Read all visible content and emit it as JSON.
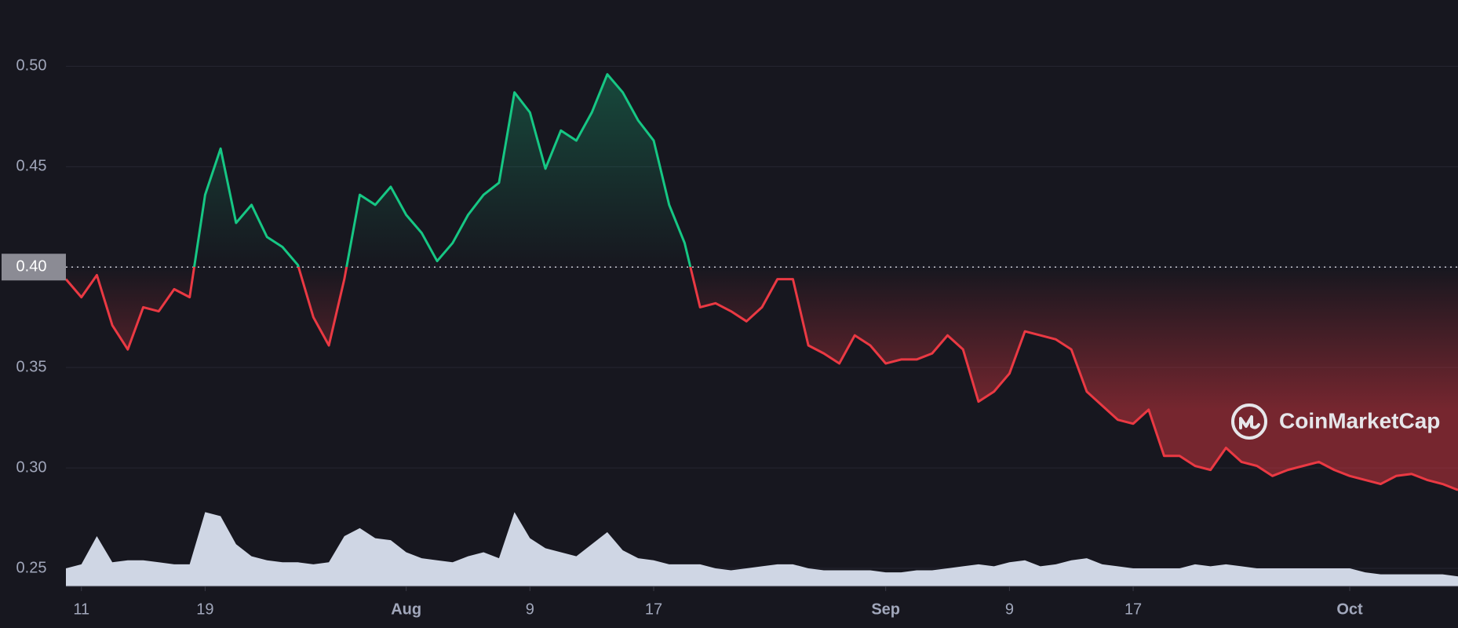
{
  "chart_data": {
    "type": "line",
    "x": [
      "07-10",
      "07-11",
      "07-12",
      "07-13",
      "07-14",
      "07-15",
      "07-16",
      "07-17",
      "07-18",
      "07-19",
      "07-20",
      "07-21",
      "07-22",
      "07-23",
      "07-24",
      "07-25",
      "07-26",
      "07-27",
      "07-28",
      "07-29",
      "07-30",
      "07-31",
      "08-01",
      "08-02",
      "08-03",
      "08-04",
      "08-05",
      "08-06",
      "08-07",
      "08-08",
      "08-09",
      "08-10",
      "08-11",
      "08-12",
      "08-13",
      "08-14",
      "08-15",
      "08-16",
      "08-17",
      "08-18",
      "08-19",
      "08-20",
      "08-21",
      "08-22",
      "08-23",
      "08-24",
      "08-25",
      "08-26",
      "08-27",
      "08-28",
      "08-29",
      "08-30",
      "08-31",
      "09-01",
      "09-02",
      "09-03",
      "09-04",
      "09-05",
      "09-06",
      "09-07",
      "09-08",
      "09-09",
      "09-10",
      "09-11",
      "09-12",
      "09-13",
      "09-14",
      "09-15",
      "09-16",
      "09-17",
      "09-18",
      "09-19",
      "09-20",
      "09-21",
      "09-22",
      "09-23",
      "09-24",
      "09-25",
      "09-26",
      "09-27",
      "09-28",
      "09-29",
      "09-30",
      "10-01",
      "10-02",
      "10-03",
      "10-04",
      "10-05",
      "10-06",
      "10-07",
      "10-08"
    ],
    "values": [
      0.394,
      0.385,
      0.396,
      0.371,
      0.359,
      0.38,
      0.378,
      0.389,
      0.385,
      0.436,
      0.459,
      0.422,
      0.431,
      0.415,
      0.41,
      0.401,
      0.375,
      0.361,
      0.394,
      0.436,
      0.431,
      0.44,
      0.426,
      0.417,
      0.403,
      0.412,
      0.426,
      0.436,
      0.442,
      0.487,
      0.477,
      0.449,
      0.468,
      0.463,
      0.477,
      0.496,
      0.487,
      0.473,
      0.463,
      0.431,
      0.412,
      0.38,
      0.382,
      0.378,
      0.373,
      0.38,
      0.394,
      0.394,
      0.361,
      0.357,
      0.352,
      0.366,
      0.361,
      0.352,
      0.354,
      0.354,
      0.357,
      0.366,
      0.359,
      0.333,
      0.338,
      0.347,
      0.368,
      0.366,
      0.364,
      0.359,
      0.338,
      0.331,
      0.324,
      0.322,
      0.329,
      0.306,
      0.306,
      0.301,
      0.299,
      0.31,
      0.303,
      0.301,
      0.296,
      0.299,
      0.301,
      0.303,
      0.299,
      0.296,
      0.294,
      0.292,
      0.296,
      0.297,
      0.294,
      0.292,
      0.289
    ],
    "volume": [
      0.25,
      0.252,
      0.266,
      0.253,
      0.254,
      0.254,
      0.253,
      0.252,
      0.252,
      0.278,
      0.276,
      0.262,
      0.256,
      0.254,
      0.253,
      0.253,
      0.252,
      0.253,
      0.266,
      0.27,
      0.265,
      0.264,
      0.258,
      0.255,
      0.254,
      0.253,
      0.256,
      0.258,
      0.255,
      0.278,
      0.265,
      0.26,
      0.258,
      0.256,
      0.262,
      0.268,
      0.259,
      0.255,
      0.254,
      0.252,
      0.252,
      0.252,
      0.25,
      0.249,
      0.25,
      0.251,
      0.252,
      0.252,
      0.25,
      0.249,
      0.249,
      0.249,
      0.249,
      0.248,
      0.248,
      0.249,
      0.249,
      0.25,
      0.251,
      0.252,
      0.251,
      0.253,
      0.254,
      0.251,
      0.252,
      0.254,
      0.255,
      0.252,
      0.251,
      0.25,
      0.25,
      0.25,
      0.25,
      0.252,
      0.251,
      0.252,
      0.251,
      0.25,
      0.25,
      0.25,
      0.25,
      0.25,
      0.25,
      0.25,
      0.248,
      0.247,
      0.247,
      0.247,
      0.247,
      0.247,
      0.246
    ],
    "baseline": 0.4,
    "up_color": "#16c784",
    "down_color": "#ea3943",
    "volume_color": "#cfd6e4",
    "xlim": [
      "07-10",
      "10-08"
    ],
    "xticks": [
      {
        "value": "07-11",
        "label": "11"
      },
      {
        "value": "07-19",
        "label": "19"
      },
      {
        "value": "08-01",
        "label": "Aug"
      },
      {
        "value": "08-09",
        "label": "9"
      },
      {
        "value": "08-17",
        "label": "17"
      },
      {
        "value": "09-01",
        "label": "Sep"
      },
      {
        "value": "09-09",
        "label": "9"
      },
      {
        "value": "09-17",
        "label": "17"
      },
      {
        "value": "10-01",
        "label": "Oct"
      }
    ],
    "ylim": [
      0.241,
      0.533
    ],
    "yticks": [
      {
        "value": 0.25,
        "label": "0.25"
      },
      {
        "value": 0.3,
        "label": "0.30"
      },
      {
        "value": 0.35,
        "label": "0.35"
      },
      {
        "value": 0.4,
        "label": "0.40"
      },
      {
        "value": 0.45,
        "label": "0.45"
      },
      {
        "value": 0.5,
        "label": "0.50"
      }
    ],
    "grid": true,
    "watermark": "CoinMarketCap"
  }
}
